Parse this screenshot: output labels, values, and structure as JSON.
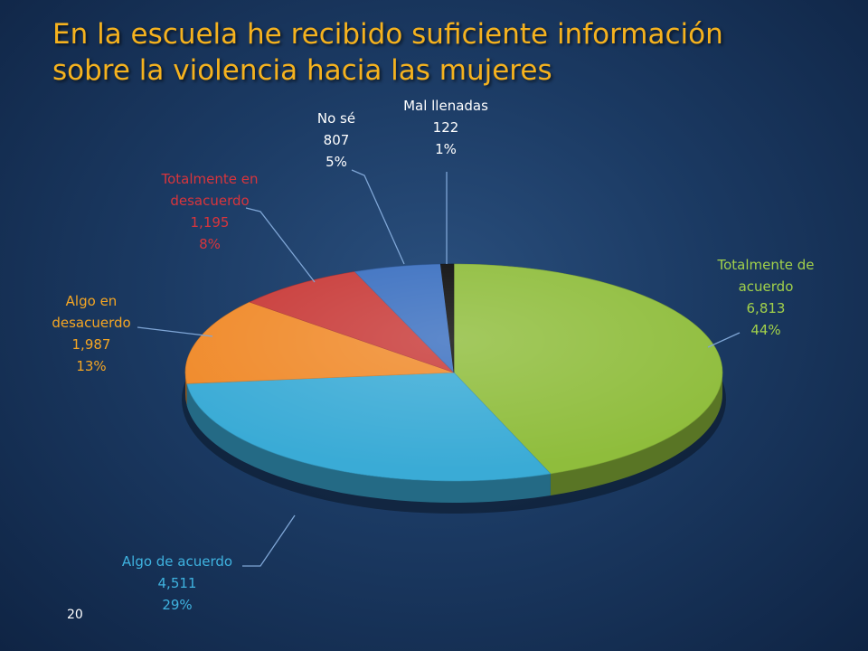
{
  "slide": {
    "title_lines": [
      "En la escuela he recibido suficiente información",
      "sobre la violencia hacia las mujeres"
    ],
    "page_number": "20"
  },
  "chart_data": {
    "type": "pie",
    "style": "3d",
    "legend": "none",
    "slices": [
      {
        "label": [
          "Totalmente de",
          "acuerdo"
        ],
        "value": 6813,
        "value_text": "6,813",
        "percent": 44,
        "percent_text": "44%",
        "color": "#8fbd3c",
        "label_color": "#a2d14a"
      },
      {
        "label": [
          "Algo de acuerdo"
        ],
        "value": 4511,
        "value_text": "4,511",
        "percent": 29,
        "percent_text": "29%",
        "color": "#3aabd6",
        "label_color": "#3fb3e0"
      },
      {
        "label": [
          "Algo en",
          "desacuerdo"
        ],
        "value": 1987,
        "value_text": "1,987",
        "percent": 13,
        "percent_text": "13%",
        "color": "#f08a2a",
        "label_color": "#f5a623"
      },
      {
        "label": [
          "Totalmente en",
          "desacuerdo"
        ],
        "value": 1195,
        "value_text": "1,195",
        "percent": 8,
        "percent_text": "8%",
        "color": "#c83a38",
        "label_color": "#d8353c"
      },
      {
        "label": [
          "No sé"
        ],
        "value": 807,
        "value_text": "807",
        "percent": 5,
        "percent_text": "5%",
        "color": "#3a6fc0",
        "label_color": "#ffffff"
      },
      {
        "label": [
          "Mal llenadas"
        ],
        "value": 122,
        "value_text": "122",
        "percent": 1,
        "percent_text": "1%",
        "color": "#0a0a0a",
        "label_color": "#ffffff"
      }
    ]
  }
}
